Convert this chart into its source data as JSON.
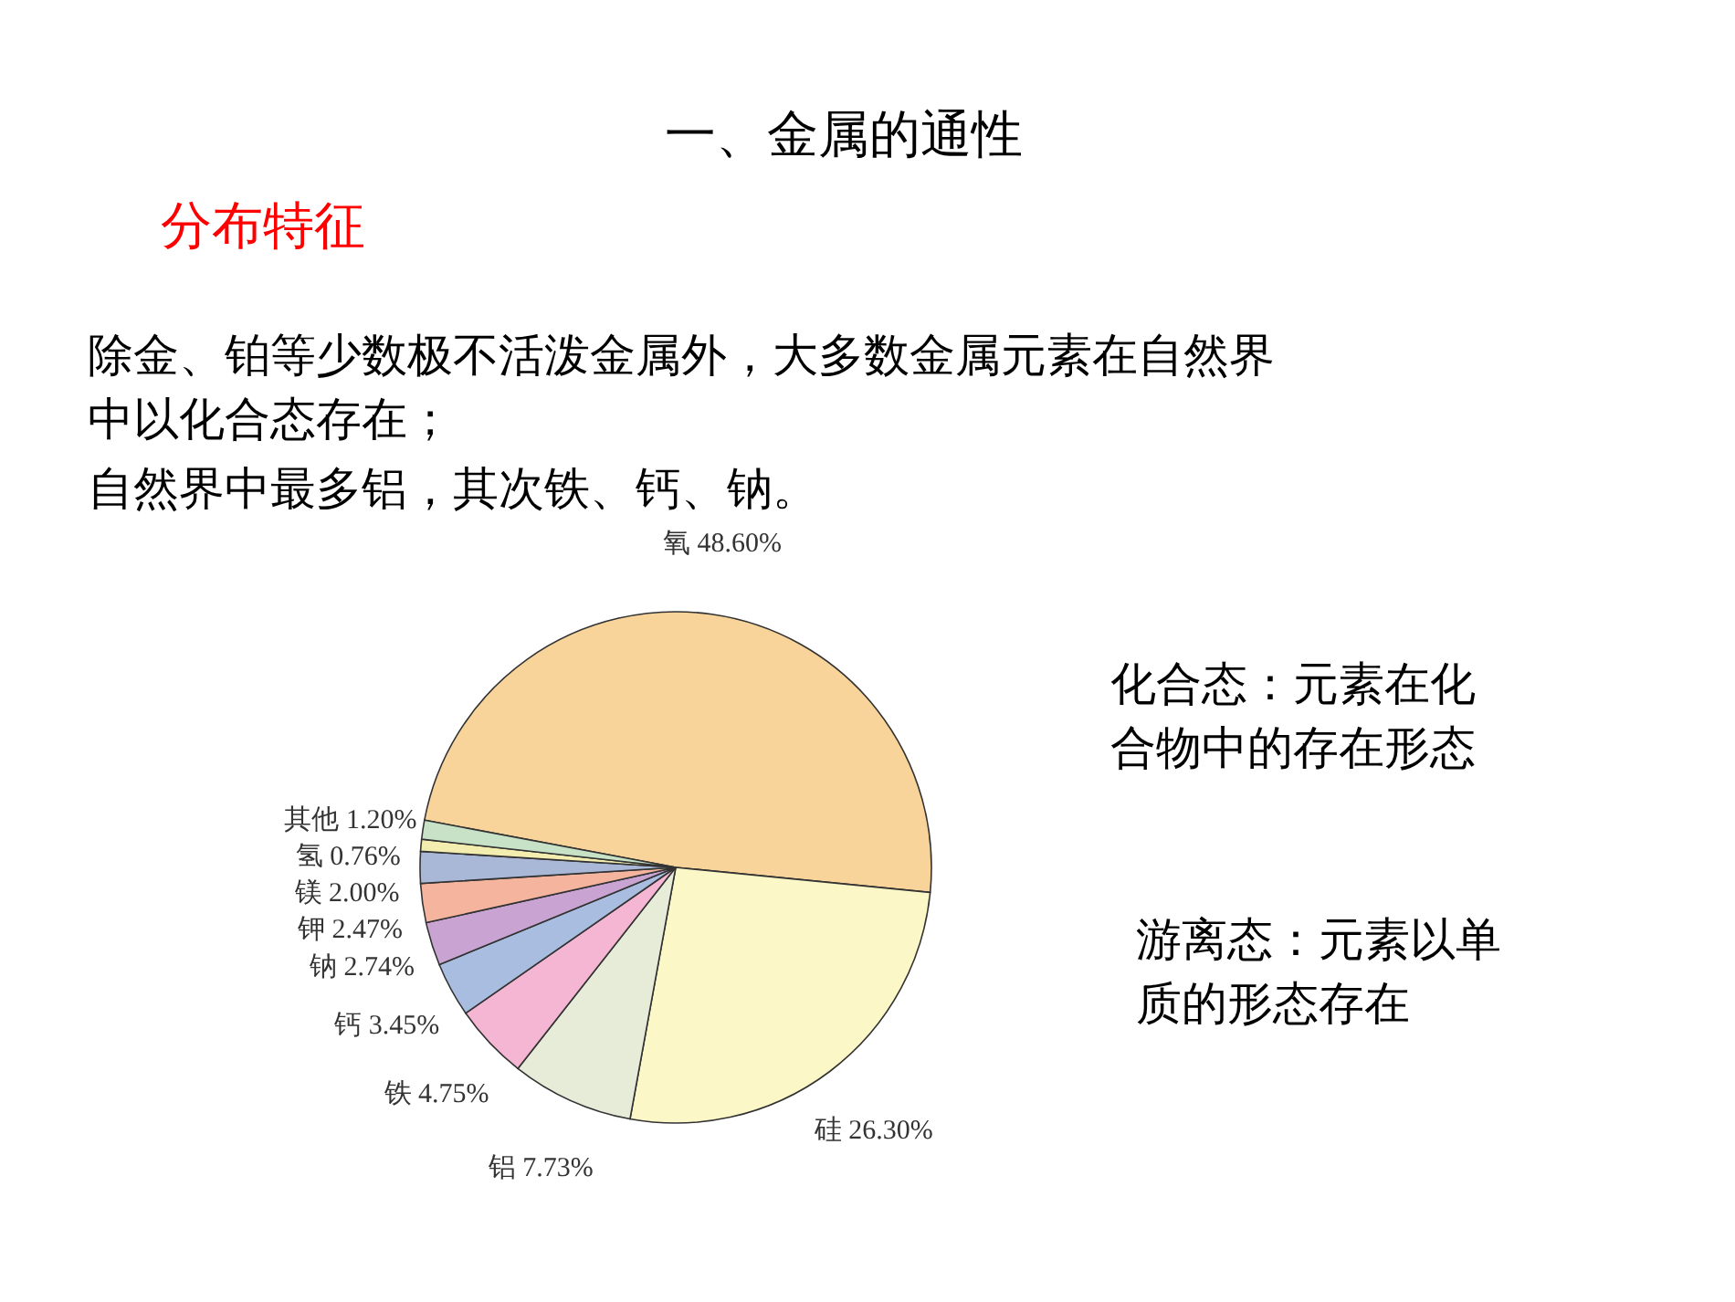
{
  "chart_data": {
    "type": "pie",
    "title": "一、金属的通性",
    "subtitle": "分布特征",
    "categories": [
      "氧",
      "硅",
      "铝",
      "铁",
      "钙",
      "钠",
      "钾",
      "镁",
      "氢",
      "其他"
    ],
    "values": [
      48.6,
      26.3,
      7.73,
      4.75,
      3.45,
      2.74,
      2.47,
      2.0,
      0.76,
      1.2
    ],
    "value_labels": [
      "48.60%",
      "26.30%",
      "7.73%",
      "4.75%",
      "3.45%",
      "2.74%",
      "2.47%",
      "2.00%",
      "0.76%",
      "1.20%"
    ],
    "colors": [
      "#f8d49a",
      "#fbf7c6",
      "#e6ecd8",
      "#f4b6d2",
      "#a9bde0",
      "#c9a3d2",
      "#f5b49e",
      "#aab8d8",
      "#f3eeb0",
      "#c8e2c8"
    ],
    "annotations": [
      "除金、铂等少数极不活泼金属外，大多数金属元素在自然界",
      "中以化合态存在；",
      "自然界中最多铝，其次铁、钙、钠。",
      "化合态：元素在化",
      "合物中的存在形态",
      "游离态：元素以单",
      "质的形态存在"
    ],
    "data_labels": true
  }
}
